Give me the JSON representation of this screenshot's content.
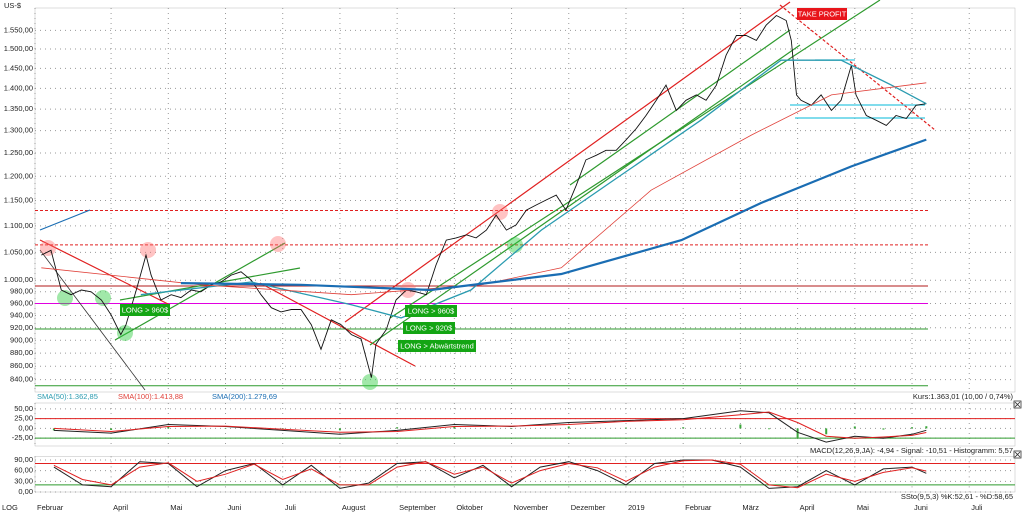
{
  "chart_data": [
    {
      "type": "line",
      "y_label": "US-$",
      "scale_label": "LOG",
      "log": true,
      "grid": true,
      "xlim": [
        0.67,
        17.8
      ],
      "ylim": [
        822,
        1612
      ],
      "xticks": [
        {
          "value": 0.67,
          "label": "Februar"
        },
        {
          "value": 2,
          "label": "April"
        },
        {
          "value": 3,
          "label": "Mai"
        },
        {
          "value": 4,
          "label": "Juni"
        },
        {
          "value": 5,
          "label": "Juli"
        },
        {
          "value": 6,
          "label": "August"
        },
        {
          "value": 7,
          "label": "September"
        },
        {
          "value": 8,
          "label": "Oktober"
        },
        {
          "value": 9,
          "label": "November"
        },
        {
          "value": 10,
          "label": "Dezember"
        },
        {
          "value": 11,
          "label": "2019"
        },
        {
          "value": 12,
          "label": "Februar"
        },
        {
          "value": 13,
          "label": "März"
        },
        {
          "value": 14,
          "label": "April"
        },
        {
          "value": 15,
          "label": "Mai"
        },
        {
          "value": 16,
          "label": "Juni"
        },
        {
          "value": 17,
          "label": "Juli"
        }
      ],
      "yticks": [
        {
          "value": 1550,
          "label": "1.550,00"
        },
        {
          "value": 1500,
          "label": "1.500,00"
        },
        {
          "value": 1450,
          "label": "1.450,00"
        },
        {
          "value": 1400,
          "label": "1.400,00"
        },
        {
          "value": 1350,
          "label": "1.350,00"
        },
        {
          "value": 1300,
          "label": "1.300,00"
        },
        {
          "value": 1250,
          "label": "1.250,00"
        },
        {
          "value": 1200,
          "label": "1.200,00"
        },
        {
          "value": 1150,
          "label": "1.150,00"
        },
        {
          "value": 1100,
          "label": "1.100,00"
        },
        {
          "value": 1050,
          "label": "1.050,00"
        },
        {
          "value": 1000,
          "label": "1.000,00"
        },
        {
          "value": 980,
          "label": "980,00"
        },
        {
          "value": 960,
          "label": "960,00"
        },
        {
          "value": 940,
          "label": "940,00"
        },
        {
          "value": 920,
          "label": "920,00"
        },
        {
          "value": 900,
          "label": "900,00"
        },
        {
          "value": 880,
          "label": "880,00"
        },
        {
          "value": 860,
          "label": "860,00"
        },
        {
          "value": 840,
          "label": "840,00"
        }
      ],
      "series": [
        {
          "name": "Kurs:1.363,01 (10,00 / 0,74%)",
          "color": "#111111",
          "x": [
            0.78,
            0.95,
            1.13,
            1.3,
            1.48,
            1.65,
            1.83,
            2.0,
            2.17,
            2.26,
            2.44,
            2.61,
            2.7,
            2.87,
            3.05,
            3.22,
            3.4,
            3.57,
            3.75,
            3.92,
            4.1,
            4.27,
            4.45,
            4.62,
            4.8,
            4.97,
            5.15,
            5.32,
            5.5,
            5.67,
            5.85,
            6.02,
            6.2,
            6.37,
            6.55,
            6.63,
            6.81,
            6.98,
            7.16,
            7.33,
            7.51,
            7.68,
            7.86,
            8.03,
            8.21,
            8.38,
            8.56,
            8.73,
            8.91,
            9.08,
            9.26,
            9.43,
            9.6,
            9.78,
            9.95,
            10.13,
            10.3,
            10.48,
            10.65,
            10.83,
            11.0,
            11.18,
            11.35,
            11.53,
            11.7,
            11.88,
            12.05,
            12.23,
            12.4,
            12.58,
            12.75,
            12.93,
            13.1,
            13.28,
            13.45,
            13.63,
            13.8,
            13.89,
            13.98,
            14.06,
            14.24,
            14.41,
            14.59,
            14.76,
            14.94,
            15.02,
            15.2,
            15.37,
            15.55,
            15.72,
            15.9,
            16.07,
            16.25
          ],
          "values": [
            1045,
            1054,
            983,
            975,
            983,
            980,
            966,
            941,
            909,
            925,
            983,
            1045,
            1009,
            966,
            975,
            970,
            983,
            980,
            992,
            997,
            1009,
            1015,
            1000,
            975,
            953,
            946,
            950,
            950,
            925,
            886,
            933,
            925,
            909,
            902,
            843,
            894,
            917,
            966,
            983,
            980,
            975,
            1027,
            1073,
            1077,
            1083,
            1077,
            1092,
            1121,
            1092,
            1102,
            1131,
            1141,
            1151,
            1161,
            1131,
            1181,
            1235,
            1245,
            1256,
            1256,
            1279,
            1305,
            1335,
            1371,
            1408,
            1347,
            1371,
            1384,
            1371,
            1408,
            1484,
            1536,
            1536,
            1523,
            1564,
            1591,
            1577,
            1523,
            1384,
            1371,
            1359,
            1384,
            1347,
            1371,
            1458,
            1384,
            1335,
            1324,
            1312,
            1335,
            1328,
            1359,
            1363.01
          ]
        },
        {
          "name": "SMA(50):1.362,85",
          "color": "#2a9bb0",
          "x": [
            2.52,
            4.45,
            6.2,
            7.07,
            8.29,
            9.52,
            10.92,
            12.31,
            13.71,
            14.76,
            15.64,
            16.25
          ],
          "values": [
            975,
            997,
            958,
            936,
            983,
            1092,
            1203,
            1324,
            1471,
            1471,
            1408,
            1362.85
          ]
        },
        {
          "name": "SMA(100):1.413,88",
          "color": "#e0413a",
          "x": [
            0.78,
            3.57,
            6.2,
            8.47,
            9.87,
            11.44,
            13.19,
            14.59,
            16.25
          ],
          "values": [
            1022,
            992,
            975,
            992,
            1022,
            1171,
            1290,
            1384,
            1413.88
          ]
        },
        {
          "name": "SMA(200):1.279,69",
          "color": "#1a6db3",
          "x": [
            3.22,
            5.32,
            7.59,
            9.87,
            11.97,
            13.36,
            14.94,
            16.25
          ],
          "values": [
            995,
            992,
            983,
            1011,
            1073,
            1145,
            1221,
            1279.69
          ]
        }
      ],
      "levels": [
        {
          "value": 1130,
          "color": "#e02020",
          "dash": true
        },
        {
          "value": 1064,
          "color": "#e02020",
          "dash": true
        },
        {
          "value": 990,
          "color": "#b01818",
          "dash": false
        },
        {
          "value": 960,
          "color": "#e000e0",
          "dash": false
        },
        {
          "value": 918,
          "color": "#2e9a2e",
          "dash": false
        },
        {
          "value": 831,
          "color": "#2e9a2e",
          "dash": false
        }
      ],
      "annotations": [
        {
          "text": "TAKE PROFIT",
          "color": "#e8151b"
        },
        {
          "text": "LONG > 960$",
          "color": "#14a514"
        },
        {
          "text": "LONG > 960$",
          "color": "#14a514"
        },
        {
          "text": "LONG > 920$",
          "color": "#14a514"
        },
        {
          "text": "LONG > Abwärtstrend",
          "color": "#14a514"
        }
      ]
    },
    {
      "type": "line",
      "label": "MACD(12,26,9,JA): -4,94 - Signal: -10,51 - Histogramm: 5,57",
      "ylim": [
        -45,
        65
      ],
      "yticks": [
        {
          "value": 50,
          "label": "50,00"
        },
        {
          "value": 25,
          "label": "25,00"
        },
        {
          "value": 0,
          "label": "0,00"
        },
        {
          "value": -25,
          "label": "-25,00"
        }
      ],
      "levels": [
        {
          "value": 25,
          "color": "#e02020",
          "dash": false
        },
        {
          "value": -25,
          "color": "#2e9a2e",
          "dash": false
        }
      ],
      "series": [
        {
          "type": "bar",
          "color": "#3aa63a",
          "x": [
            1,
            2,
            3,
            4,
            5,
            6,
            7,
            8,
            9,
            10,
            11,
            12,
            13,
            13.5,
            14,
            14.5,
            15,
            15.5,
            16,
            16.25
          ],
          "values": [
            -5,
            -4,
            5,
            -1,
            -3,
            -5,
            3,
            5,
            -1,
            5,
            2,
            3,
            10,
            -2,
            -25,
            -15,
            5,
            -3,
            3,
            5.57
          ]
        },
        {
          "color": "#222222",
          "x": [
            1,
            2,
            3,
            4,
            5,
            6,
            7,
            8,
            9,
            10,
            11,
            12,
            13,
            13.5,
            14,
            14.5,
            15,
            15.5,
            16,
            16.25
          ],
          "values": [
            -5,
            -12,
            10,
            5,
            -5,
            -15,
            -5,
            10,
            5,
            15,
            20,
            25,
            45,
            40,
            -10,
            -35,
            -20,
            -25,
            -15,
            -4.94
          ]
        },
        {
          "color": "#e02020",
          "x": [
            1,
            2,
            3,
            4,
            5,
            6,
            7,
            8,
            9,
            10,
            11,
            12,
            13,
            13.5,
            14,
            14.5,
            15,
            15.5,
            16,
            16.25
          ],
          "values": [
            0,
            -8,
            5,
            6,
            -2,
            -10,
            -8,
            5,
            6,
            10,
            18,
            22,
            35,
            42,
            15,
            -20,
            -25,
            -22,
            -18,
            -10.51
          ]
        }
      ]
    },
    {
      "type": "line",
      "label": "SSto(9,5,3) %K:52,61 - %D:58,65",
      "ylim": [
        0,
        100
      ],
      "yticks": [
        {
          "value": 90,
          "label": "90,00"
        },
        {
          "value": 60,
          "label": "60,00"
        },
        {
          "value": 30,
          "label": "30,00"
        },
        {
          "value": 0,
          "label": "0,00"
        }
      ],
      "levels": [
        {
          "value": 80,
          "color": "#e02020",
          "dash": false
        },
        {
          "value": 20,
          "color": "#2e9a2e",
          "dash": false
        }
      ],
      "series": [
        {
          "color": "#222222",
          "x": [
            1,
            1.5,
            2,
            2.5,
            3,
            3.5,
            4,
            4.5,
            5,
            5.5,
            6,
            6.5,
            7,
            7.5,
            8,
            8.5,
            9,
            9.5,
            10,
            10.5,
            11,
            11.5,
            12,
            12.5,
            13,
            13.5,
            14,
            14.5,
            15,
            15.5,
            16,
            16.25
          ],
          "values": [
            70,
            20,
            15,
            85,
            80,
            15,
            60,
            80,
            20,
            75,
            10,
            25,
            80,
            85,
            40,
            75,
            15,
            70,
            85,
            60,
            20,
            80,
            90,
            90,
            70,
            10,
            15,
            60,
            20,
            65,
            70,
            52.61
          ]
        },
        {
          "color": "#e02020",
          "x": [
            1,
            1.5,
            2,
            2.5,
            3,
            3.5,
            4,
            4.5,
            5,
            5.5,
            6,
            6.5,
            7,
            7.5,
            8,
            8.5,
            9,
            9.5,
            10,
            10.5,
            11,
            11.5,
            12,
            12.5,
            13,
            13.5,
            14,
            14.5,
            15,
            15.5,
            16,
            16.25
          ],
          "values": [
            75,
            35,
            20,
            70,
            82,
            30,
            50,
            78,
            35,
            65,
            20,
            20,
            70,
            85,
            50,
            70,
            25,
            60,
            80,
            68,
            30,
            70,
            88,
            90,
            78,
            20,
            12,
            50,
            30,
            55,
            68,
            58.65
          ]
        }
      ]
    }
  ]
}
